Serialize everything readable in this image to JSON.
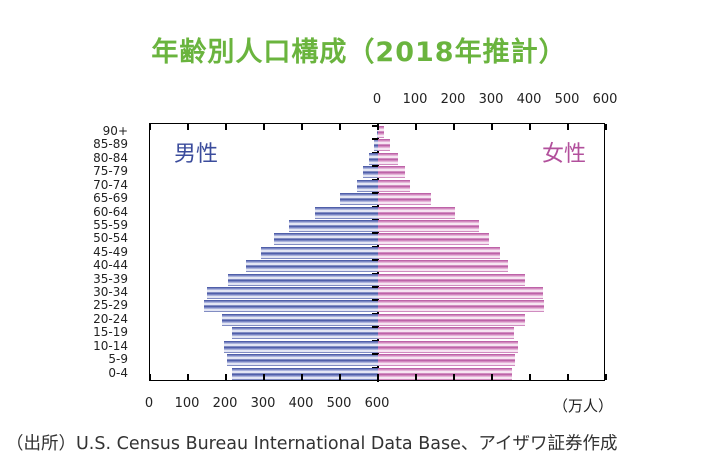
{
  "chart_data": {
    "type": "bar",
    "orientation": "horizontal-pyramid",
    "title": "年齢別人口構成（2018年推計）",
    "unit": "（万人）",
    "categories": [
      "0-4",
      "5-9",
      "10-14",
      "15-19",
      "20-24",
      "25-29",
      "30-34",
      "35-39",
      "40-44",
      "45-49",
      "50-54",
      "55-59",
      "60-64",
      "65-69",
      "70-74",
      "75-79",
      "80-84",
      "85-89",
      "90+"
    ],
    "series": [
      {
        "name": "男性",
        "color": "#3b4c9c",
        "values": [
          385,
          398,
          404,
          385,
          411,
          459,
          451,
          396,
          348,
          309,
          275,
          235,
          167,
          101,
          56,
          40,
          24,
          11,
          2
        ]
      },
      {
        "name": "女性",
        "color": "#b2509c",
        "values": [
          352,
          360,
          368,
          357,
          386,
          436,
          433,
          386,
          341,
          320,
          291,
          265,
          202,
          139,
          83,
          70,
          52,
          31,
          17
        ]
      }
    ],
    "xlim": [
      0,
      600
    ],
    "xticks_top": [
      "0",
      "100",
      "200",
      "300",
      "400",
      "500",
      "600"
    ],
    "xticks_bottom": [
      "600",
      "500",
      "400",
      "300",
      "200",
      "100",
      "0"
    ]
  },
  "source": "（出所）U.S. Census Bureau International Data Base、アイザワ証券作成"
}
